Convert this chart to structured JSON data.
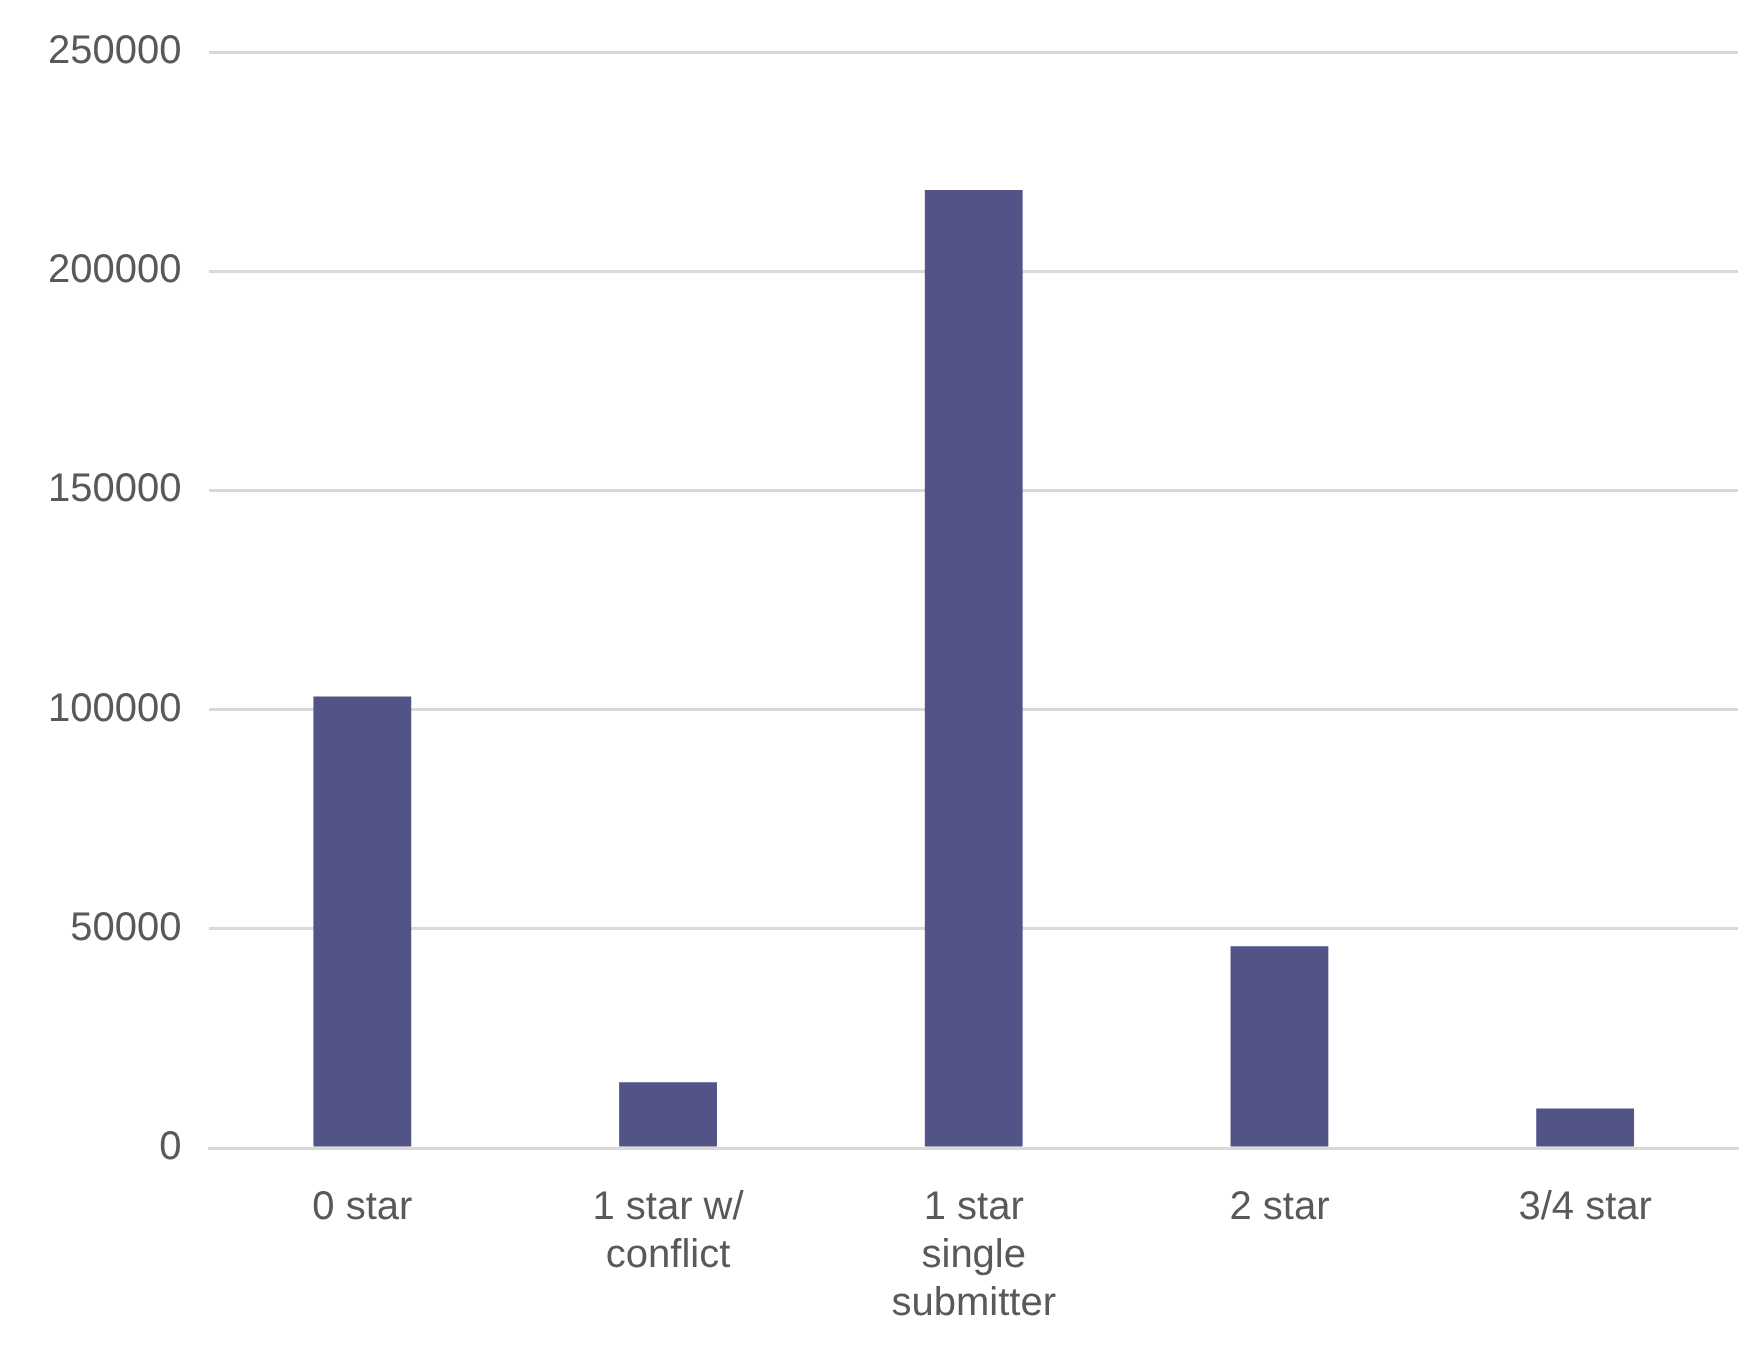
{
  "chart_data": {
    "type": "bar",
    "categories": [
      "0 star",
      "1 star w/ conflict",
      "1 star single submitter",
      "2 star",
      "3/4 star"
    ],
    "series": [
      {
        "color": "#525488",
        "values": [
          103000,
          15000,
          218500,
          46000,
          9000
        ]
      }
    ],
    "ylim": [
      0,
      250000
    ],
    "yticks": [
      0,
      50000,
      100000,
      150000,
      200000,
      250000
    ],
    "grid": "y",
    "legend": false
  }
}
